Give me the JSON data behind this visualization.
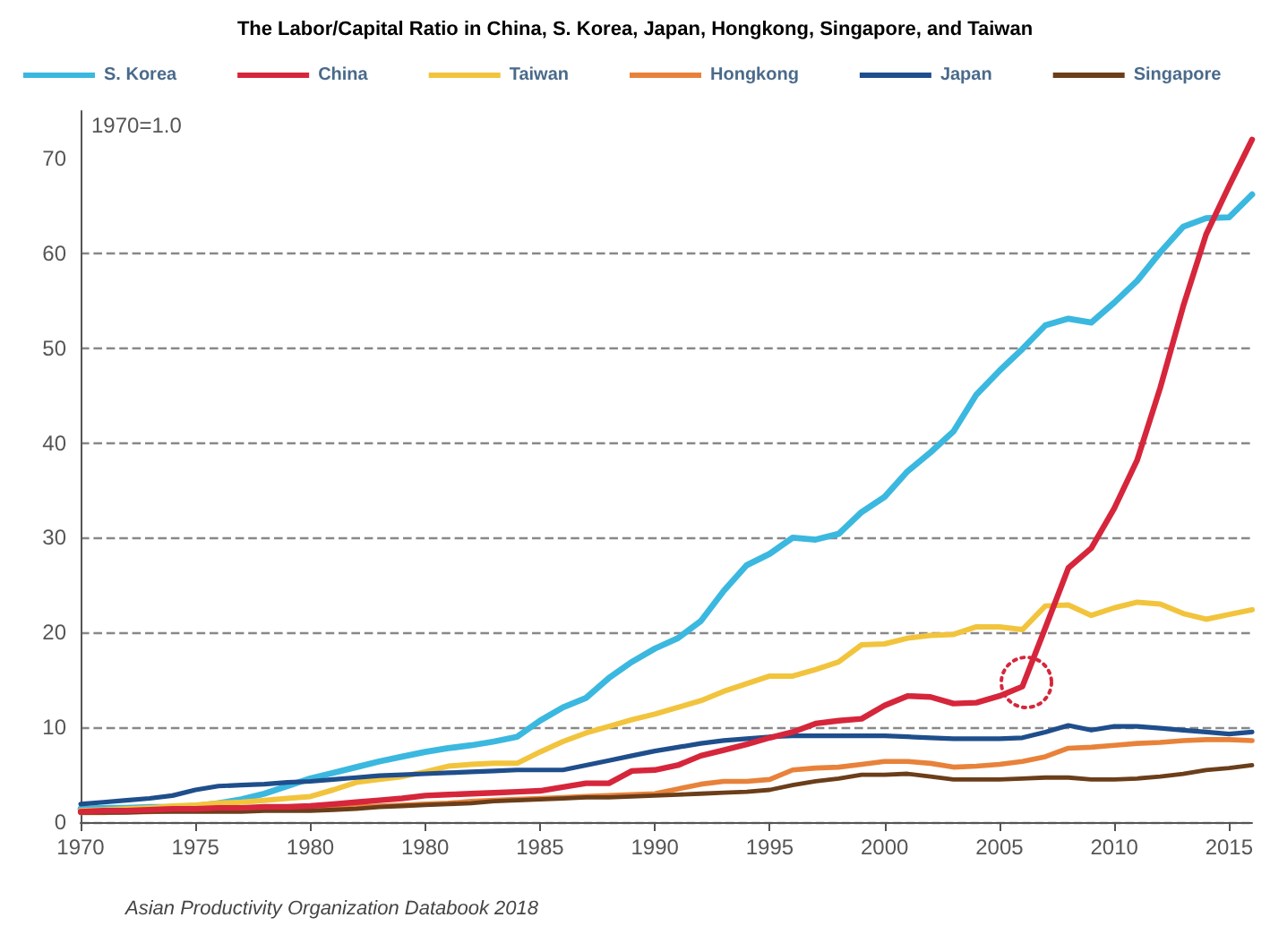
{
  "chart_data": {
    "type": "line",
    "title": "The Labor/Capital Ratio in China, S. Korea, Japan, Hongkong, Singapore, and Taiwan",
    "ylabel": "1970=1.0",
    "annotations": [
      "Asian Productivity Organization Databook 2018"
    ],
    "categories": [
      "1970",
      null,
      null,
      null,
      null,
      "1975",
      null,
      null,
      null,
      null,
      "1980",
      null,
      null,
      null,
      null,
      "1980",
      null,
      null,
      null,
      null,
      "1985",
      null,
      null,
      null,
      null,
      "1990",
      null,
      null,
      null,
      null,
      "1995",
      null,
      null,
      null,
      null,
      "2000",
      null,
      null,
      null,
      null,
      "2005",
      null,
      null,
      null,
      null,
      "2010",
      null,
      null,
      null,
      null,
      "2015",
      null
    ],
    "ylim": [
      0,
      75
    ],
    "yticks": [
      0,
      10,
      20,
      30,
      40,
      50,
      60,
      70
    ],
    "grid": "y",
    "legend": "top",
    "marker": "none",
    "line_style": "solid",
    "series": [
      {
        "name": "S. Korea",
        "color": "#3bb8df",
        "values": [
          1.4,
          1.5,
          1.5,
          1.6,
          1.6,
          1.7,
          2.0,
          2.4,
          3.0,
          3.8,
          4.6,
          5.2,
          5.8,
          6.4,
          6.9,
          7.4,
          7.8,
          8.1,
          8.5,
          9.0,
          10.7,
          12.1,
          13.1,
          15.2,
          16.9,
          18.3,
          19.4,
          21.2,
          24.4,
          27.1,
          28.3,
          30.0,
          29.8,
          30.4,
          32.7,
          34.3,
          37.0,
          39.0,
          41.2,
          45.1,
          47.6,
          49.9,
          52.4,
          53.1,
          52.7,
          54.8,
          57.1,
          60.1,
          62.8,
          63.7,
          63.8,
          66.2
        ]
      },
      {
        "name": "China",
        "color": "#d6263b",
        "values": [
          1.1,
          1.2,
          1.2,
          1.3,
          1.4,
          1.4,
          1.5,
          1.5,
          1.6,
          1.6,
          1.7,
          1.9,
          2.1,
          2.3,
          2.5,
          2.8,
          2.9,
          3.0,
          3.1,
          3.2,
          3.3,
          3.7,
          4.1,
          4.1,
          5.4,
          5.5,
          6.0,
          7.0,
          7.6,
          8.2,
          8.9,
          9.5,
          10.4,
          10.7,
          10.9,
          12.3,
          13.3,
          13.2,
          12.5,
          12.6,
          13.3,
          14.3,
          20.5,
          26.8,
          28.9,
          33.1,
          38.2,
          45.8,
          54.4,
          62.0,
          67.1,
          72
        ]
      },
      {
        "name": "Taiwan",
        "color": "#f2c43d",
        "values": [
          1.2,
          1.3,
          1.4,
          1.5,
          1.7,
          1.8,
          2.0,
          2.1,
          2.3,
          2.5,
          2.7,
          3.4,
          4.2,
          4.5,
          4.8,
          5.3,
          5.9,
          6.1,
          6.2,
          6.2,
          7.4,
          8.5,
          9.4,
          10.1,
          10.8,
          11.4,
          12.1,
          12.8,
          13.8,
          14.6,
          15.4,
          15.4,
          16.1,
          16.9,
          18.7,
          18.8,
          19.4,
          19.7,
          19.8,
          20.6,
          20.6,
          20.3,
          22.8,
          22.9,
          21.8,
          22.6,
          23.2,
          23.0,
          22.0,
          21.4,
          21.9,
          22.4
        ]
      },
      {
        "name": "Hongkong",
        "color": "#e8823a",
        "values": [
          1.0,
          1.0,
          1.1,
          1.1,
          1.2,
          1.2,
          1.2,
          1.3,
          1.3,
          1.4,
          1.4,
          1.5,
          1.6,
          1.7,
          1.8,
          1.9,
          2.0,
          2.2,
          2.3,
          2.4,
          2.5,
          2.6,
          2.7,
          2.8,
          2.9,
          3.0,
          3.5,
          4.0,
          4.3,
          4.3,
          4.5,
          5.5,
          5.7,
          5.8,
          6.1,
          6.4,
          6.4,
          6.2,
          5.8,
          5.9,
          6.1,
          6.4,
          6.9,
          7.8,
          7.9,
          8.1,
          8.3,
          8.4,
          8.6,
          8.7,
          8.7,
          8.6
        ]
      },
      {
        "name": "Japan",
        "color": "#1f4e8c",
        "values": [
          1.9,
          2.1,
          2.3,
          2.5,
          2.8,
          3.4,
          3.8,
          3.9,
          4.0,
          4.2,
          4.3,
          4.5,
          4.7,
          4.9,
          5.0,
          5.1,
          5.2,
          5.3,
          5.4,
          5.5,
          5.5,
          5.5,
          6.0,
          6.5,
          7.0,
          7.5,
          7.9,
          8.3,
          8.6,
          8.8,
          9.0,
          9.1,
          9.1,
          9.1,
          9.1,
          9.1,
          9.0,
          8.9,
          8.8,
          8.8,
          8.8,
          8.9,
          9.5,
          10.2,
          9.7,
          10.1,
          10.1,
          9.9,
          9.7,
          9.5,
          9.3,
          9.5
        ]
      },
      {
        "name": "Singapore",
        "color": "#6b3e1a",
        "values": [
          1.0,
          1.0,
          1.0,
          1.1,
          1.1,
          1.1,
          1.1,
          1.1,
          1.2,
          1.2,
          1.2,
          1.3,
          1.4,
          1.6,
          1.7,
          1.8,
          1.9,
          2.0,
          2.2,
          2.3,
          2.4,
          2.5,
          2.6,
          2.6,
          2.7,
          2.8,
          2.9,
          3.0,
          3.1,
          3.2,
          3.4,
          3.9,
          4.3,
          4.6,
          5.0,
          5.0,
          5.1,
          4.8,
          4.5,
          4.5,
          4.5,
          4.6,
          4.7,
          4.7,
          4.5,
          4.5,
          4.6,
          4.8,
          5.1,
          5.5,
          5.7,
          6.0
        ]
      }
    ]
  }
}
